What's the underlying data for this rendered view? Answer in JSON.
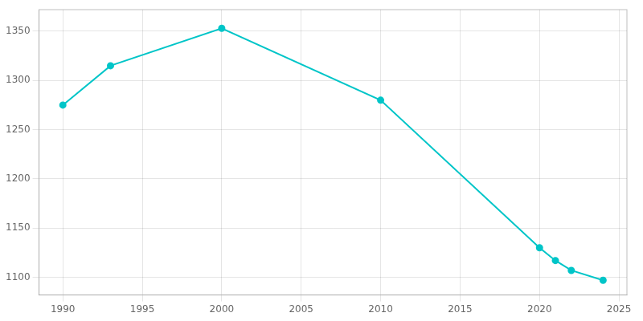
{
  "chart_data": {
    "type": "line",
    "x": [
      1990,
      1993,
      2000,
      2010,
      2020,
      2021,
      2022,
      2024
    ],
    "values": [
      1275,
      1315,
      1353,
      1280,
      1130,
      1117,
      1107,
      1097
    ],
    "color": "#00C5C8",
    "marker": "circle",
    "xlim": [
      1988.5,
      2025.5
    ],
    "ylim": [
      1082,
      1372
    ],
    "xticks": [
      1990,
      1995,
      2000,
      2005,
      2010,
      2015,
      2020,
      2025
    ],
    "yticks": [
      1100,
      1150,
      1200,
      1250,
      1300,
      1350
    ],
    "grid": true
  }
}
